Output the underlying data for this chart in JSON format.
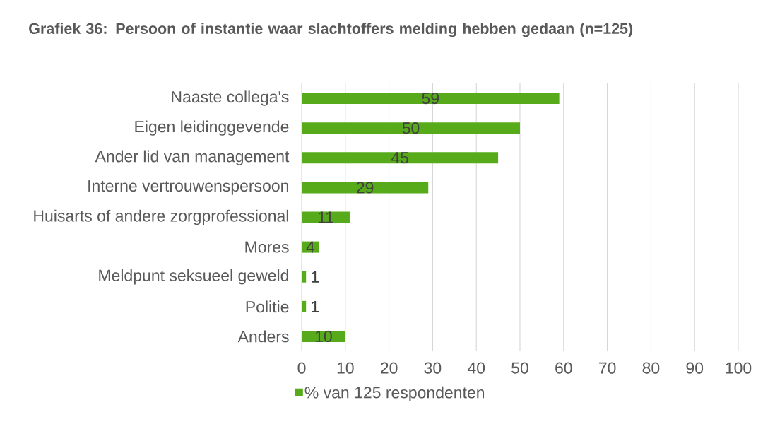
{
  "chart_data": {
    "type": "bar",
    "orientation": "horizontal",
    "title": "Grafiek 36: Persoon of instantie waar slachtoffers melding hebben gedaan (n=125)",
    "categories": [
      "Naaste collega's",
      "Eigen leidinggevende",
      "Ander lid van management",
      "Interne vertrouwenspersoon",
      "Huisarts of andere zorgprofessional",
      "Mores",
      "Meldpunt seksueel geweld",
      "Politie",
      "Anders"
    ],
    "series": [
      {
        "name": "% van 125 respondenten",
        "color": "#57ab1b",
        "values": [
          59,
          50,
          45,
          29,
          11,
          4,
          1,
          1,
          10
        ]
      }
    ],
    "xlim": [
      0,
      100
    ],
    "xticks": [
      0,
      10,
      20,
      30,
      40,
      50,
      60,
      70,
      80,
      90,
      100
    ],
    "grid": "x",
    "legend": "bottom",
    "data_labels": true
  }
}
